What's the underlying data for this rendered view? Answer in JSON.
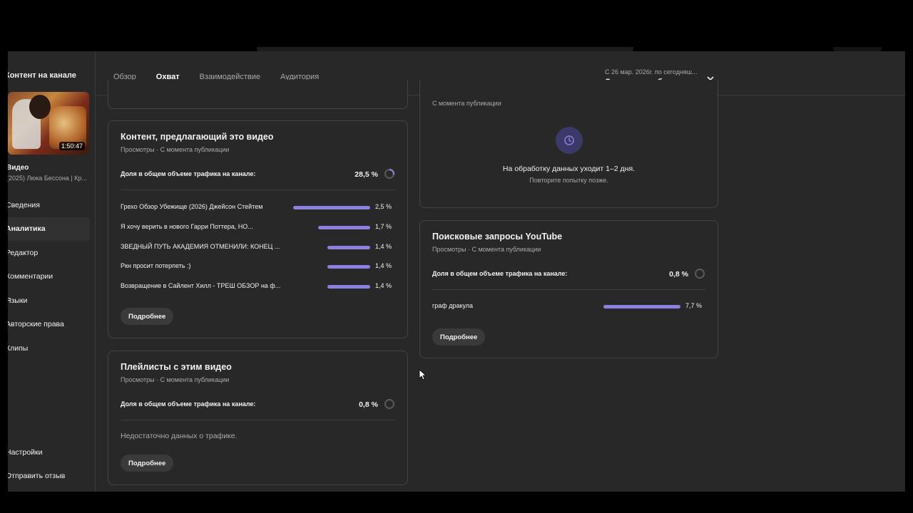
{
  "sidebar": {
    "title": "Контент на канале",
    "thumbnail_duration": "1:50:47",
    "video_label": "Видео",
    "video_subtitle": "(2025) Люка Бессона | Кр...",
    "items": [
      {
        "label": "Сведения"
      },
      {
        "label": "Аналитика",
        "active": true
      },
      {
        "label": "Редактор"
      },
      {
        "label": "Комментарии"
      },
      {
        "label": "Языки"
      },
      {
        "label": "Авторские права"
      },
      {
        "label": "Клипы"
      }
    ],
    "bottom_items": [
      {
        "label": "Настройки"
      },
      {
        "label": "Отправить отзыв"
      }
    ]
  },
  "header": {
    "tabs": [
      {
        "label": "Обзор"
      },
      {
        "label": "Охват",
        "active": true
      },
      {
        "label": "Взаимодействие"
      },
      {
        "label": "Аудитория"
      }
    ],
    "date_range": "С 26 мар. 2026г. по сегодняш...",
    "date_label": "С момента публикации"
  },
  "cards": {
    "suggested": {
      "title": "Контент, предлагающий это видео",
      "subtitle": "Просмотры · С момента публикации",
      "share_label": "Доля в общем объеме трафика на канале:",
      "share_value": "28,5 %",
      "share_fraction": 0.285,
      "rows": [
        {
          "label": "Грехо Обзор Убежище (2026) Джейсон Стейтем",
          "value": "2,5 %",
          "fraction": 1.0
        },
        {
          "label": "Я хочу верить в нового Гарри Поттера, НО...",
          "value": "1,7 %",
          "fraction": 0.68
        },
        {
          "label": "ЗВЕДНЫЙ ПУТЬ АКАДЕМИЯ ОТМЕНИЛИ: КОНЕЦ ...",
          "value": "1,4 %",
          "fraction": 0.56
        },
        {
          "label": "Ркн просит потерпеть :)",
          "value": "1,4 %",
          "fraction": 0.56
        },
        {
          "label": "Возвращение в Сайлент Хилл - ТРЕШ ОБЗОР на ф...",
          "value": "1,4 %",
          "fraction": 0.56
        }
      ],
      "more_label": "Подробнее"
    },
    "playlists": {
      "title": "Плейлисты с этим видео",
      "subtitle": "Просмотры · С момента публикации",
      "share_label": "Доля в общем объеме трафика на канале:",
      "share_value": "0,8 %",
      "share_fraction": 0.008,
      "no_data": "Недостаточно данных о трафике.",
      "more_label": "Подробнее"
    },
    "processing": {
      "subtitle": "С момента публикации",
      "message": "На обработку данных уходит 1–2 дня.",
      "sub_message": "Повторите попытку позже."
    },
    "search": {
      "title": "Поисковые запросы YouTube",
      "subtitle": "Просмотры · С момента публикации",
      "share_label": "Доля в общем объеме трафика на канале:",
      "share_value": "0,8 %",
      "share_fraction": 0.008,
      "rows": [
        {
          "label": "граф дракула",
          "value": "7,7 %",
          "fraction": 1.0
        }
      ],
      "more_label": "Подробнее"
    }
  },
  "colors": {
    "accent_bar": "#8b80e0",
    "background": "#282828",
    "card_border": "#444444",
    "clock_bg": "#3c3869"
  },
  "icons": {
    "clock": "clock-icon",
    "chevron": "chevron-down-icon",
    "ring": "progress-ring-icon"
  }
}
